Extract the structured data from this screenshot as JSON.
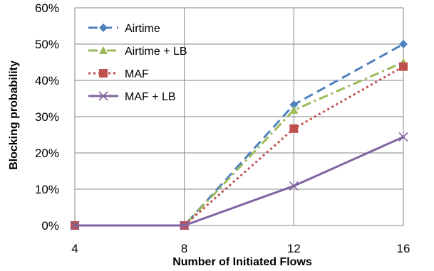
{
  "chart_data": {
    "type": "line",
    "title": "",
    "xlabel": "Number of Initiated Flows",
    "ylabel": "Blocking probability",
    "x": [
      4,
      8,
      12,
      16
    ],
    "xlim": [
      4,
      16
    ],
    "ylim": [
      0,
      60
    ],
    "y_ticks": [
      0,
      10,
      20,
      30,
      40,
      50,
      60
    ],
    "y_tick_labels": [
      "0%",
      "10%",
      "20%",
      "30%",
      "40%",
      "50%",
      "60%"
    ],
    "x_tick_labels": [
      "4",
      "8",
      "12",
      "16"
    ],
    "grid": true,
    "legend_position": "top-left",
    "series": [
      {
        "name": "Airtime",
        "values": [
          0,
          0,
          33.3,
          50.0
        ],
        "color": "#4F81BD",
        "dash": "dashed",
        "marker": "diamond"
      },
      {
        "name": "Airtime + LB",
        "values": [
          0,
          0,
          31.8,
          45.0
        ],
        "color": "#9BBB59",
        "dash": "dashdot",
        "marker": "triangle"
      },
      {
        "name": "MAF",
        "values": [
          0,
          0,
          26.7,
          43.8
        ],
        "color": "#C0504D",
        "dash": "dotted",
        "marker": "square"
      },
      {
        "name": "MAF + LB",
        "values": [
          0,
          0,
          10.9,
          24.4
        ],
        "color": "#8064A2",
        "dash": "solid",
        "marker": "x"
      }
    ]
  }
}
